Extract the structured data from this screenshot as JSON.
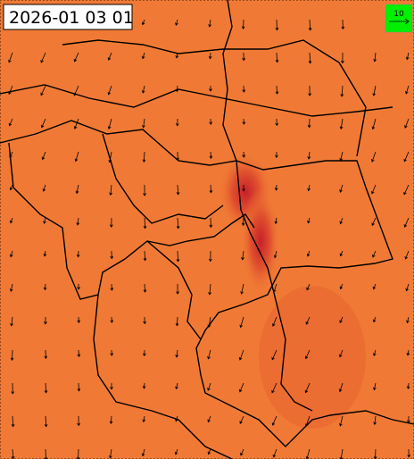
{
  "map": {
    "timestamp": "2026-01 03 01",
    "legend": {
      "label": "10"
    }
  }
}
